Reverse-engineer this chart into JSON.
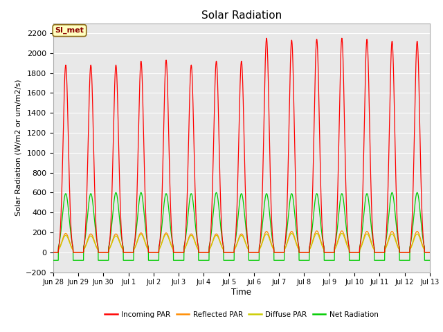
{
  "title": "Solar Radiation",
  "ylabel": "Solar Radiation (W/m2 or um/m2/s)",
  "xlabel": "Time",
  "ylim": [
    -200,
    2300
  ],
  "yticks": [
    -200,
    0,
    200,
    400,
    600,
    800,
    1000,
    1200,
    1400,
    1600,
    1800,
    2000,
    2200
  ],
  "x_tick_labels": [
    "Jun 28",
    "Jun 29",
    "Jun 30",
    "Jul 1",
    "Jul 2",
    "Jul 3",
    "Jul 4",
    "Jul 5",
    "Jul 6",
    "Jul 7",
    "Jul 8",
    "Jul 9",
    "Jul 10",
    "Jul 11",
    "Jul 12",
    "Jul 13"
  ],
  "annotation_text": "SI_met",
  "annotation_bbox_facecolor": "#FFFFC0",
  "annotation_bbox_edgecolor": "#8B6914",
  "background_color": "#E8E8E8",
  "grid_color": "#FFFFFF",
  "legend_entries": [
    "Incoming PAR",
    "Reflected PAR",
    "Diffuse PAR",
    "Net Radiation"
  ],
  "legend_colors": [
    "#FF0000",
    "#FF8C00",
    "#CCCC00",
    "#00CC00"
  ],
  "line_colors": {
    "incoming": "#FF0000",
    "reflected": "#FF8C00",
    "diffuse": "#CCCC00",
    "net": "#00CC00"
  },
  "n_days": 15
}
